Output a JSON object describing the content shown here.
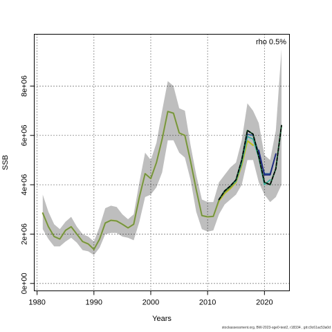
{
  "chart_data": {
    "type": "line",
    "xlabel": "Years",
    "ylabel": "SSB",
    "xlim": [
      1979.5,
      2024.4
    ],
    "ylim": [
      -300000,
      10100000
    ],
    "grid": true,
    "xticks": [
      1980,
      1990,
      2000,
      2010,
      2020
    ],
    "xtick_labels": [
      "1980",
      "1990",
      "2000",
      "2010",
      "2020"
    ],
    "yticks": [
      0,
      2000000,
      4000000,
      6000000,
      8000000
    ],
    "ytick_labels": [
      "0e+00",
      "2e+06",
      "4e+06",
      "6e+06",
      "8e+06"
    ],
    "annotation": "rho 0.5%",
    "band": {
      "color": "#bebebe",
      "x": [
        1981,
        1982,
        1983,
        1984,
        1985,
        1986,
        1987,
        1988,
        1989,
        1990,
        1991,
        1992,
        1993,
        1994,
        1995,
        1996,
        1997,
        1998,
        1999,
        2000,
        2001,
        2002,
        2003,
        2004,
        2005,
        2006,
        2007,
        2008,
        2009,
        2010,
        2011,
        2012,
        2013,
        2014,
        2015,
        2016,
        2017,
        2018,
        2019,
        2020,
        2021,
        2022,
        2023
      ],
      "upper": [
        3600000,
        2900000,
        2400000,
        2200000,
        2500000,
        2700000,
        2300000,
        2000000,
        1900000,
        1700000,
        2300000,
        3050000,
        3150000,
        3100000,
        2800000,
        2600000,
        2800000,
        4100000,
        5300000,
        5000000,
        5700000,
        7000000,
        8200000,
        8000000,
        7100000,
        7000000,
        5600000,
        4400000,
        3400000,
        3300000,
        3300000,
        4100000,
        4400000,
        4700000,
        4900000,
        5800000,
        7300000,
        7000000,
        6500000,
        5200000,
        5000000,
        6200000,
        9500000
      ],
      "lower": [
        2200000,
        1800000,
        1500000,
        1500000,
        1700000,
        1850000,
        1650000,
        1350000,
        1300000,
        1150000,
        1450000,
        2000000,
        2050000,
        2050000,
        1900000,
        1850000,
        1750000,
        2500000,
        3500000,
        3600000,
        3900000,
        4500000,
        5800000,
        5800000,
        5300000,
        5100000,
        4200000,
        2900000,
        2200000,
        2100000,
        2150000,
        2800000,
        3200000,
        3400000,
        3600000,
        4000000,
        5000000,
        5000000,
        4100000,
        3600000,
        3300000,
        3500000,
        4000000
      ]
    },
    "series": [
      {
        "color": "#bcbd22",
        "width": 2.2,
        "dash": "",
        "x": [
          1981,
          1982,
          1983,
          1984,
          1985,
          1986,
          1987,
          1988,
          1989,
          1990,
          1991,
          1992,
          1993,
          1994,
          1995,
          1996,
          1997,
          1998,
          1999,
          2000,
          2001,
          2002,
          2003,
          2004,
          2005,
          2006,
          2007,
          2008,
          2009,
          2010,
          2011,
          2012,
          2013,
          2014,
          2015,
          2016,
          2017,
          2018
        ],
        "values": [
          2850000,
          2300000,
          1900000,
          1800000,
          2150000,
          2300000,
          2000000,
          1700000,
          1600000,
          1380000,
          1800000,
          2450000,
          2560000,
          2530000,
          2400000,
          2250000,
          2400000,
          3500000,
          4450000,
          4250000,
          4900000,
          5850000,
          6970000,
          6900000,
          6100000,
          6000000,
          4950000,
          3800000,
          2750000,
          2700000,
          2720000,
          3350000,
          3650000,
          3850000,
          4100000,
          4800000,
          5780000,
          5600000
        ]
      },
      {
        "color": "#6a8f4a",
        "width": 1.6,
        "dash": "",
        "x": [
          1981,
          1982,
          1983,
          1984,
          1985,
          1986,
          1987,
          1988,
          1989,
          1990,
          1991,
          1992,
          1993,
          1994,
          1995,
          1996,
          1997,
          1998,
          1999,
          2000,
          2001,
          2002,
          2003,
          2004,
          2005,
          2006,
          2007,
          2008,
          2009,
          2010,
          2011,
          2012,
          2013,
          2014,
          2015,
          2016
        ],
        "values": [
          2850000,
          2300000,
          1900000,
          1800000,
          2150000,
          2300000,
          2000000,
          1700000,
          1600000,
          1380000,
          1800000,
          2450000,
          2560000,
          2530000,
          2400000,
          2250000,
          2400000,
          3500000,
          4450000,
          4250000,
          4900000,
          5850000,
          6970000,
          6900000,
          6100000,
          6000000,
          4950000,
          3800000,
          2750000,
          2700000,
          2720000,
          3400000,
          3700000,
          3900000,
          4150000,
          4850000
        ]
      },
      {
        "color": "#3ab0a0",
        "width": 1.8,
        "dash": "",
        "x": [
          2012,
          2013,
          2014,
          2015,
          2016,
          2017,
          2018,
          2019,
          2020,
          2021
        ],
        "values": [
          3400000,
          3750000,
          3950000,
          4150000,
          4900000,
          5950000,
          5850000,
          5100000,
          4000000,
          4200000
        ]
      },
      {
        "color": "#2e5b9a",
        "width": 1.6,
        "dash": "",
        "x": [
          2012,
          2013,
          2014,
          2015,
          2016,
          2017,
          2018,
          2019,
          2020,
          2021,
          2022
        ],
        "values": [
          3400000,
          3750000,
          3950000,
          4200000,
          5000000,
          6050000,
          6000000,
          5300000,
          4450000,
          4450000,
          5250000
        ]
      },
      {
        "color": "#1a237e",
        "width": 1.8,
        "dash": "",
        "x": [
          2019,
          2020,
          2021,
          2022
        ],
        "values": [
          5400000,
          4400000,
          4400000,
          5250000
        ]
      },
      {
        "color": "#1e6b3a",
        "width": 2.0,
        "dash": "",
        "x": [
          2012,
          2013,
          2014,
          2015,
          2016,
          2017,
          2018,
          2019,
          2020,
          2021,
          2022,
          2023
        ],
        "values": [
          3400000,
          3750000,
          3950000,
          4200000,
          5000000,
          6200000,
          6050000,
          5150000,
          4100000,
          4000000,
          4650000,
          6400000
        ]
      },
      {
        "color": "#000000",
        "width": 1.6,
        "dash": "4,3",
        "x": [
          2012,
          2013,
          2014,
          2015,
          2016,
          2017,
          2018,
          2019,
          2020,
          2021,
          2022,
          2023
        ],
        "values": [
          3400000,
          3750000,
          3950000,
          4200000,
          5000000,
          6200000,
          6050000,
          5150000,
          4100000,
          4000000,
          4650000,
          6400000
        ]
      }
    ]
  },
  "footer": "stockassessment.org, BW-2023-sge0-test2, r18334 , git:c9c61ac53a0d"
}
